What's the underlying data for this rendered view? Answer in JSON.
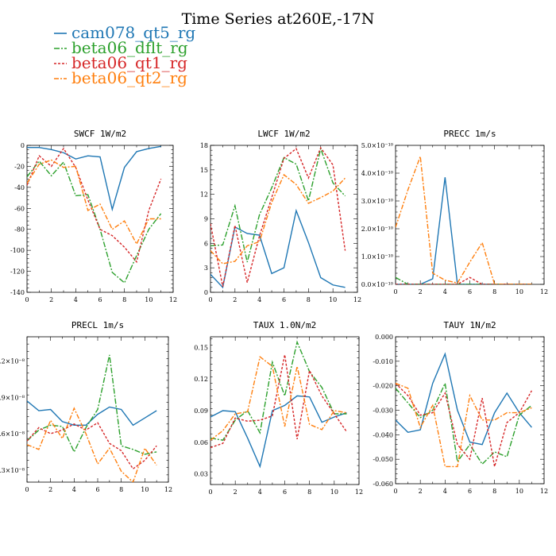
{
  "figure": {
    "title": "Time Series at260E,-17N",
    "legend": [
      {
        "name": "cam078_qt5_rg",
        "color": "#1f77b4",
        "dash": ""
      },
      {
        "name": "beta06_dflt_rg",
        "color": "#2ca02c",
        "dash": "7,2,2,2"
      },
      {
        "name": "beta06_qt1_rg",
        "color": "#d62728",
        "dash": "3,2"
      },
      {
        "name": "beta06_qt2_rg",
        "color": "#ff7f0e",
        "dash": "6,2,2,2"
      }
    ]
  },
  "chart_data": [
    {
      "type": "line",
      "title": "SWCF   1W/m2",
      "x": [
        0,
        1,
        2,
        3,
        4,
        5,
        6,
        7,
        8,
        9,
        10,
        11
      ],
      "xlim": [
        0,
        12
      ],
      "xticks": [
        0,
        2,
        4,
        6,
        8,
        10,
        12
      ],
      "ylim": [
        -140,
        0
      ],
      "yticks": [
        -140,
        -120,
        -100,
        -80,
        -60,
        -40,
        -20,
        0
      ],
      "ytick_labels": [
        "-140",
        "-120",
        "-100",
        "-80",
        "-60",
        "-40",
        "-20",
        "0"
      ],
      "series": [
        {
          "name": "cam078_qt5_rg",
          "values": [
            -2,
            -2,
            -4,
            -7,
            -13,
            -10,
            -11,
            -61,
            -21,
            -6,
            -3,
            -1
          ]
        },
        {
          "name": "beta06_dflt_rg",
          "values": [
            -30,
            -15,
            -29,
            -16,
            -48,
            -47,
            -80,
            -121,
            -131,
            -105,
            -80,
            -65
          ]
        },
        {
          "name": "beta06_qt1_rg",
          "values": [
            -38,
            -10,
            -20,
            -3,
            -21,
            -52,
            -80,
            -86,
            -97,
            -111,
            -62,
            -32
          ]
        },
        {
          "name": "beta06_qt2_rg",
          "values": [
            -36,
            -18,
            -14,
            -21,
            -20,
            -62,
            -56,
            -80,
            -72,
            -94,
            -70,
            -70
          ]
        }
      ]
    },
    {
      "type": "line",
      "title": "LWCF   1W/m2",
      "x": [
        0,
        1,
        2,
        3,
        4,
        5,
        6,
        7,
        8,
        9,
        10,
        11
      ],
      "xlim": [
        0,
        12
      ],
      "xticks": [
        0,
        2,
        4,
        6,
        8,
        10,
        12
      ],
      "ylim": [
        0,
        18
      ],
      "yticks": [
        0,
        3,
        6,
        9,
        12,
        15,
        18
      ],
      "ytick_labels": [
        "0",
        "3",
        "6",
        "9",
        "12",
        "15",
        "18"
      ],
      "series": [
        {
          "name": "cam078_qt5_rg",
          "values": [
            2.2,
            0.6,
            8,
            7.2,
            7.0,
            2.3,
            3.0,
            10.0,
            6.1,
            1.8,
            0.9,
            0.6
          ]
        },
        {
          "name": "beta06_dflt_rg",
          "values": [
            5.7,
            5.8,
            10.6,
            3.7,
            9.5,
            12.8,
            16.5,
            15.7,
            11.2,
            17.6,
            13.4,
            11.8
          ]
        },
        {
          "name": "beta06_qt1_rg",
          "values": [
            8.4,
            0.7,
            8.2,
            1.2,
            6.9,
            11.6,
            16.4,
            17.6,
            14.0,
            17.7,
            15.6,
            5.1
          ]
        },
        {
          "name": "beta06_qt2_rg",
          "values": [
            5.1,
            3.5,
            3.8,
            5.7,
            6.2,
            11.0,
            14.4,
            13.2,
            10.9,
            11.6,
            12.4,
            14.0
          ]
        }
      ]
    },
    {
      "type": "line",
      "title": "PRECC   1m/s",
      "x": [
        0,
        1,
        2,
        3,
        4,
        5,
        6,
        7,
        8,
        9,
        10,
        11
      ],
      "xlim": [
        0,
        12
      ],
      "xticks": [
        0,
        2,
        4,
        6,
        8,
        10,
        12
      ],
      "ylim": [
        0,
        5e-10
      ],
      "yticks": [
        0,
        1e-10,
        2e-10,
        3e-10,
        4e-10,
        5e-10
      ],
      "ytick_labels": [
        "0.0×10⁻¹⁰",
        "1.0×10⁻¹⁰",
        "2.0×10⁻¹⁰",
        "3.0×10⁻¹⁰",
        "4.0×10⁻¹⁰",
        "5.0×10⁻¹⁰"
      ],
      "series": [
        {
          "name": "cam078_qt5_rg",
          "values": [
            0,
            0,
            0,
            2e-11,
            3.85e-10,
            0,
            0,
            0,
            0,
            0,
            0,
            0
          ]
        },
        {
          "name": "beta06_dflt_rg",
          "values": [
            2.5e-11,
            0,
            0,
            0,
            0,
            0,
            0,
            0,
            0,
            0,
            0,
            0
          ]
        },
        {
          "name": "beta06_qt1_rg",
          "values": [
            0,
            0,
            0,
            0,
            0,
            0,
            2.5e-11,
            0,
            0,
            0,
            0,
            0
          ]
        },
        {
          "name": "beta06_qt2_rg",
          "values": [
            2.05e-10,
            3.4e-10,
            4.6e-10,
            4e-11,
            1.5e-11,
            5e-12,
            8e-11,
            1.5e-10,
            0,
            0,
            0,
            0
          ]
        }
      ]
    },
    {
      "type": "line",
      "title": "PRECL   1m/s",
      "x": [
        0,
        1,
        2,
        3,
        4,
        5,
        6,
        7,
        8,
        9,
        10,
        11
      ],
      "xlim": [
        0,
        12
      ],
      "xticks": [
        0,
        2,
        4,
        6,
        8,
        10,
        12
      ],
      "ylim": [
        2e-09,
        1.4e-08
      ],
      "yticks": [
        3e-09,
        6e-09,
        9e-09,
        1.2e-08
      ],
      "ytick_labels": [
        "0.3×10⁻⁸",
        "0.6×10⁻⁸",
        "0.9×10⁻⁸",
        "1.2×10⁻⁸"
      ],
      "series": [
        {
          "name": "cam078_qt5_rg",
          "values": [
            8.7e-09,
            7.9e-09,
            8e-09,
            7e-09,
            6.7e-09,
            6.7e-09,
            7.6e-09,
            8.2e-09,
            8e-09,
            6.7e-09,
            7.3e-09,
            7.9e-09
          ]
        },
        {
          "name": "beta06_dflt_rg",
          "values": [
            5.4e-09,
            6.3e-09,
            6.7e-09,
            6.6e-09,
            4.5e-09,
            6.5e-09,
            8e-09,
            1.25e-08,
            5e-09,
            4.7e-09,
            4.3e-09,
            4.5e-09
          ]
        },
        {
          "name": "beta06_qt1_rg",
          "values": [
            5.4e-09,
            6.5e-09,
            6e-09,
            6.3e-09,
            6.8e-09,
            6.3e-09,
            6.9e-09,
            5.2e-09,
            4.6e-09,
            3.1e-09,
            3.8e-09,
            5e-09
          ]
        },
        {
          "name": "beta06_qt2_rg",
          "values": [
            5.1e-09,
            4.7e-09,
            7.1e-09,
            5.6e-09,
            8.1e-09,
            6e-09,
            3.5e-09,
            4.8e-09,
            2.9e-09,
            2e-09,
            4.8e-09,
            3.4e-09
          ]
        }
      ]
    },
    {
      "type": "line",
      "title": "TAUX   1.0N/m2",
      "x": [
        0,
        1,
        2,
        3,
        4,
        5,
        6,
        7,
        8,
        9,
        10,
        11
      ],
      "xlim": [
        0,
        12
      ],
      "xticks": [
        0,
        2,
        4,
        6,
        8,
        10,
        12
      ],
      "ylim": [
        0.02,
        0.16
      ],
      "yticks": [
        0.03,
        0.06,
        0.09,
        0.12,
        0.15
      ],
      "ytick_labels": [
        "0.03",
        "0.06",
        "0.09",
        "0.12",
        "0.15"
      ],
      "series": [
        {
          "name": "cam078_qt5_rg",
          "values": [
            0.084,
            0.09,
            0.089,
            0.064,
            0.037,
            0.09,
            0.095,
            0.104,
            0.103,
            0.079,
            0.084,
            0.088
          ]
        },
        {
          "name": "beta06_dflt_rg",
          "values": [
            0.064,
            0.062,
            0.081,
            0.09,
            0.069,
            0.136,
            0.104,
            0.155,
            0.127,
            0.112,
            0.087,
            0.087
          ]
        },
        {
          "name": "beta06_qt1_rg",
          "values": [
            0.055,
            0.059,
            0.083,
            0.08,
            0.081,
            0.085,
            0.143,
            0.063,
            0.128,
            0.104,
            0.087,
            0.07
          ]
        },
        {
          "name": "beta06_qt2_rg",
          "values": [
            0.062,
            0.071,
            0.087,
            0.089,
            0.141,
            0.132,
            0.075,
            0.132,
            0.077,
            0.072,
            0.09,
            0.088
          ]
        }
      ]
    },
    {
      "type": "line",
      "title": "TAUY   1N/m2",
      "x": [
        0,
        1,
        2,
        3,
        4,
        5,
        6,
        7,
        8,
        9,
        10,
        11
      ],
      "xlim": [
        0,
        12
      ],
      "xticks": [
        0,
        2,
        4,
        6,
        8,
        10,
        12
      ],
      "ylim": [
        -0.06,
        0.0
      ],
      "yticks": [
        -0.06,
        -0.05,
        -0.04,
        -0.03,
        -0.02,
        -0.01,
        0.0
      ],
      "ytick_labels": [
        "-0.060",
        "-0.050",
        "-0.040",
        "-0.030",
        "-0.020",
        "-0.010",
        "0.000"
      ],
      "series": [
        {
          "name": "cam078_qt5_rg",
          "values": [
            -0.034,
            -0.039,
            -0.038,
            -0.019,
            -0.007,
            -0.03,
            -0.043,
            -0.044,
            -0.031,
            -0.023,
            -0.031,
            -0.037
          ]
        },
        {
          "name": "beta06_dflt_rg",
          "values": [
            -0.021,
            -0.027,
            -0.033,
            -0.03,
            -0.019,
            -0.051,
            -0.044,
            -0.052,
            -0.047,
            -0.049,
            -0.032,
            -0.028
          ]
        },
        {
          "name": "beta06_qt1_rg",
          "values": [
            -0.019,
            -0.024,
            -0.032,
            -0.031,
            -0.023,
            -0.044,
            -0.05,
            -0.025,
            -0.053,
            -0.035,
            -0.031,
            -0.022
          ]
        },
        {
          "name": "beta06_qt2_rg",
          "values": [
            -0.019,
            -0.021,
            -0.037,
            -0.028,
            -0.053,
            -0.053,
            -0.024,
            -0.034,
            -0.034,
            -0.031,
            -0.031,
            -0.029
          ]
        }
      ]
    }
  ]
}
